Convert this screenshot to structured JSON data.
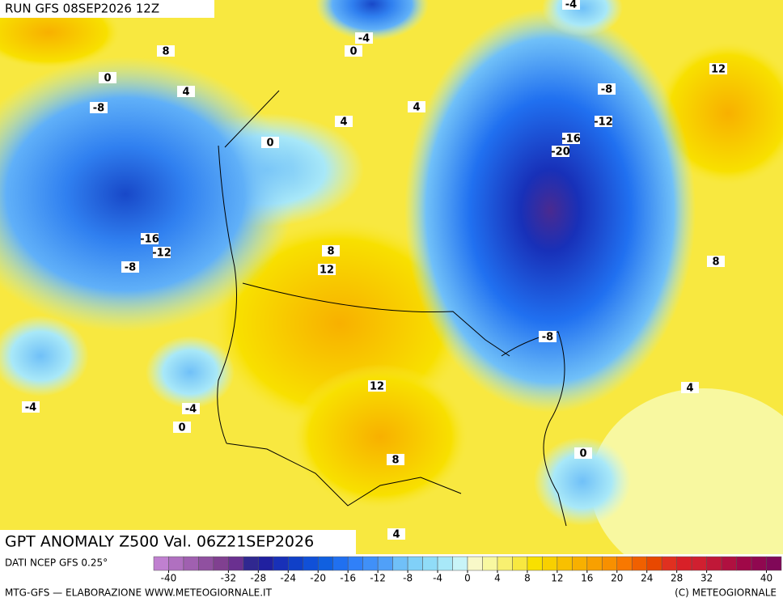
{
  "header": {
    "run": "RUN GFS 08SEP2026 12Z"
  },
  "map": {
    "contour_labels": [
      8,
      0,
      4,
      -8,
      4,
      0,
      -4,
      0,
      4,
      -4,
      12,
      -8,
      -12,
      -16,
      -20,
      -16,
      -12,
      -8,
      8,
      12,
      8,
      -8,
      12,
      4,
      -4,
      -4,
      0,
      0,
      8,
      4
    ]
  },
  "footer": {
    "title": "GPT ANOMALY Z500 Val. 06Z21SEP2026",
    "source": "DATI NCEP GFS 0.25°",
    "credit": "MTG-GFS — ELABORAZIONE WWW.METEOGIORNALE.IT",
    "copyright": "(C) METEOGIORNALE"
  },
  "colorbar": {
    "lim": [
      -42,
      42
    ],
    "ticks": [
      -40,
      -32,
      -28,
      -24,
      -20,
      -16,
      -12,
      -8,
      -4,
      0,
      4,
      8,
      12,
      16,
      20,
      24,
      28,
      32,
      40
    ],
    "colors": [
      "#c080d0",
      "#b070c0",
      "#a060b0",
      "#9050a0",
      "#804090",
      "#6a3090",
      "#302890",
      "#2020a0",
      "#1830b8",
      "#1040c8",
      "#1050d8",
      "#1060e0",
      "#2070f0",
      "#3080f8",
      "#4090f8",
      "#50a0f8",
      "#70c0f8",
      "#80d0f8",
      "#90dcf8",
      "#a8e8f8",
      "#c8f4f8",
      "#f8f8c8",
      "#f8f8a0",
      "#f8f070",
      "#f8e840",
      "#f8e000",
      "#f8d000",
      "#f8c000",
      "#f8b000",
      "#f8a000",
      "#f89000",
      "#f87800",
      "#f06000",
      "#e84800",
      "#e03020",
      "#d82028",
      "#d02030",
      "#c01838",
      "#b01040",
      "#a00848",
      "#900850",
      "#800858"
    ]
  }
}
